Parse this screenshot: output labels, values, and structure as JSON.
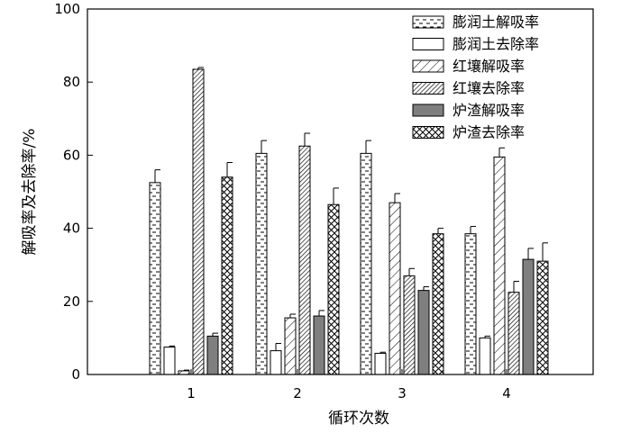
{
  "chart_data": {
    "type": "bar",
    "xlabel": "循环次数",
    "ylabel": "解吸率及去除率/%",
    "ylim": [
      0,
      100
    ],
    "yticks": [
      0,
      20,
      40,
      60,
      80,
      100
    ],
    "categories": [
      "1",
      "2",
      "3",
      "4"
    ],
    "grid": false,
    "legend_position": "top-right",
    "series": [
      {
        "name": "膨润土解吸率",
        "pattern": "dashes",
        "values": [
          52.5,
          60.5,
          60.5,
          38.5
        ],
        "errors": [
          3.5,
          3.5,
          3.5,
          2.0
        ]
      },
      {
        "name": "膨润土去除率",
        "pattern": "blank",
        "values": [
          7.5,
          6.5,
          5.8,
          10.0
        ],
        "errors": [
          0.3,
          2.0,
          0.3,
          0.5
        ]
      },
      {
        "name": "红壤解吸率",
        "pattern": "light-diagonal",
        "values": [
          1.0,
          15.5,
          47.0,
          59.5
        ],
        "errors": [
          0.2,
          1.0,
          2.5,
          2.5
        ]
      },
      {
        "name": "红壤去除率",
        "pattern": "dense-diagonal",
        "values": [
          83.5,
          62.5,
          27.0,
          22.5
        ],
        "errors": [
          0.5,
          3.5,
          2.0,
          3.0
        ]
      },
      {
        "name": "炉渣解吸率",
        "pattern": "gray",
        "values": [
          10.5,
          16.0,
          23.0,
          31.5
        ],
        "errors": [
          0.8,
          1.5,
          1.0,
          3.0
        ]
      },
      {
        "name": "炉渣去除率",
        "pattern": "crosshatch",
        "values": [
          54.0,
          46.5,
          38.5,
          31.0
        ],
        "errors": [
          4.0,
          4.5,
          1.5,
          5.0
        ]
      }
    ],
    "legend_labels": [
      "膨润土解吸率",
      "膨润土去除率",
      "红壤解吸率",
      "红壤去除率",
      "炉渣解吸率",
      "炉渣去除率"
    ]
  }
}
